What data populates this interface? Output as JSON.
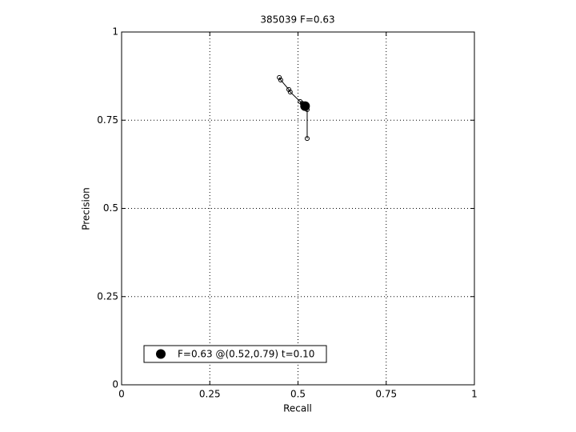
{
  "chart_data": {
    "type": "line",
    "title": "385039 F=0.63",
    "xlabel": "Recall",
    "ylabel": "Precision",
    "xlim": [
      0,
      1
    ],
    "ylim": [
      0,
      1
    ],
    "xticks": [
      0,
      0.25,
      0.5,
      0.75,
      1
    ],
    "yticks": [
      0,
      0.25,
      0.5,
      0.75,
      1
    ],
    "grid": true,
    "legend": "lower left",
    "series": [
      {
        "color": "#000000",
        "x": [
          0.447,
          0.451,
          0.474,
          0.478,
          0.506,
          0.512,
          0.519,
          0.524,
          0.526,
          0.526
        ],
        "values": [
          0.871,
          0.864,
          0.837,
          0.83,
          0.803,
          0.798,
          0.794,
          0.789,
          0.78,
          0.698
        ]
      },
      {
        "name": "F=0.63 @(0.52,0.79) t=0.10",
        "color": "#000000",
        "x": [
          0.52
        ],
        "values": [
          0.79
        ]
      }
    ]
  }
}
